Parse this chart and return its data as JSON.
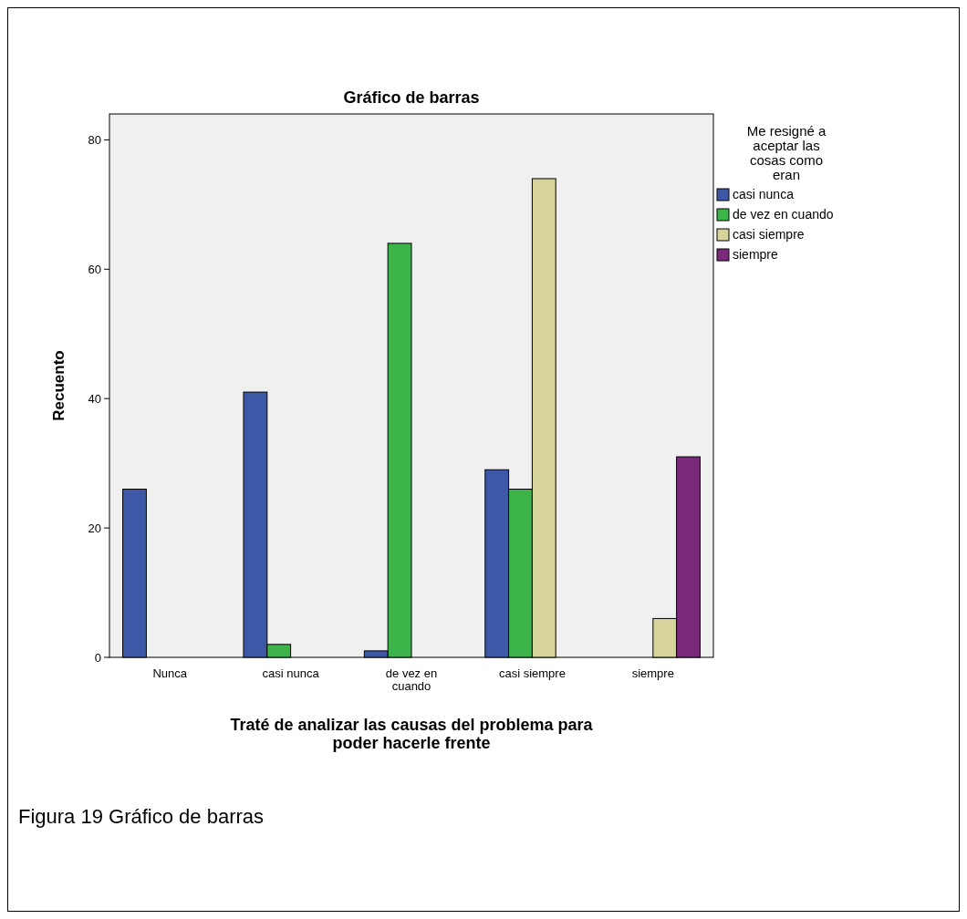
{
  "chart_data": {
    "type": "bar",
    "title": "Gráfico de barras",
    "xlabel": "Traté de analizar las causas del problema para poder hacerle frente",
    "ylabel": "Recuento",
    "legend_title": "Me resigné a aceptar las cosas como eran",
    "categories": [
      "Nunca",
      "casi nunca",
      "de vez en cuando",
      "casi siempre",
      "siempre"
    ],
    "series": [
      {
        "name": "casi nunca",
        "color": "#3e58a8",
        "values": [
          26,
          41,
          1,
          29,
          null
        ]
      },
      {
        "name": "de vez en cuando",
        "color": "#3cb44a",
        "values": [
          null,
          2,
          64,
          26,
          null
        ]
      },
      {
        "name": "casi siempre",
        "color": "#d6d39b",
        "values": [
          null,
          null,
          null,
          74,
          6
        ]
      },
      {
        "name": "siempre",
        "color": "#7a2a7b",
        "values": [
          null,
          null,
          null,
          null,
          31
        ]
      }
    ],
    "ylim": [
      0,
      84
    ],
    "yticks": [
      0,
      20,
      40,
      60,
      80
    ],
    "legend": "right",
    "annotations": [
      "Figura 19 Gráfico de barras"
    ]
  }
}
